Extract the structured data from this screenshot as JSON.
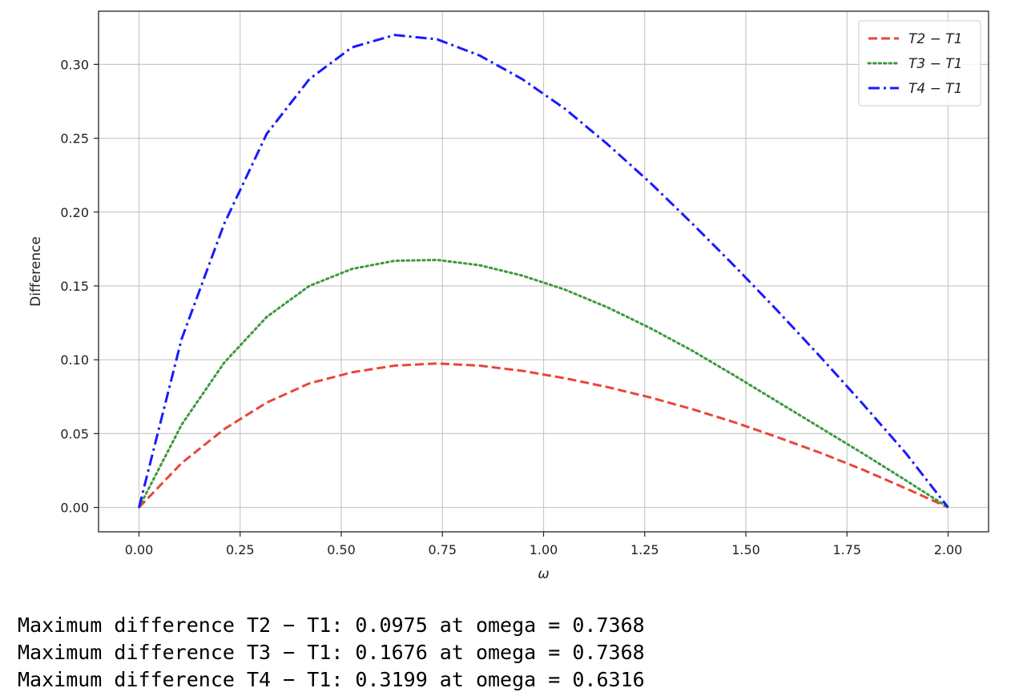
{
  "chart_data": {
    "type": "line",
    "title": "",
    "xlabel": "ω",
    "ylabel": "Difference",
    "xlim": [
      -0.1,
      2.1
    ],
    "ylim": [
      -0.0165,
      0.336
    ],
    "xticks": [
      0.0,
      0.25,
      0.5,
      0.75,
      1.0,
      1.25,
      1.5,
      1.75,
      2.0
    ],
    "xtick_labels": [
      "0.00",
      "0.25",
      "0.50",
      "0.75",
      "1.00",
      "1.25",
      "1.50",
      "1.75",
      "2.00"
    ],
    "yticks": [
      0.0,
      0.05,
      0.1,
      0.15,
      0.2,
      0.25,
      0.3
    ],
    "ytick_labels": [
      "0.00",
      "0.05",
      "0.10",
      "0.15",
      "0.20",
      "0.25",
      "0.30"
    ],
    "grid": true,
    "legend_position": "top-right",
    "x": [
      0.0,
      0.1053,
      0.2105,
      0.3158,
      0.4211,
      0.5263,
      0.6316,
      0.7368,
      0.8421,
      0.9474,
      1.0526,
      1.1579,
      1.2632,
      1.3684,
      1.4737,
      1.5789,
      1.6842,
      1.7895,
      1.8947,
      2.0
    ],
    "series": [
      {
        "name": "T2 − T1",
        "color": "#e8463c",
        "dash": "dashed",
        "values": [
          0.0,
          0.03,
          0.053,
          0.071,
          0.084,
          0.0915,
          0.096,
          0.0975,
          0.096,
          0.0925,
          0.0875,
          0.0815,
          0.0745,
          0.0665,
          0.0575,
          0.0475,
          0.037,
          0.0255,
          0.013,
          0.0
        ]
      },
      {
        "name": "T3 − T1",
        "color": "#3c9a3c",
        "dash": "dotted",
        "values": [
          0.0,
          0.056,
          0.098,
          0.129,
          0.15,
          0.1615,
          0.167,
          0.1676,
          0.164,
          0.157,
          0.1475,
          0.1355,
          0.1215,
          0.106,
          0.089,
          0.0715,
          0.054,
          0.0365,
          0.0185,
          0.0
        ]
      },
      {
        "name": "T4 − T1",
        "color": "#1a1aff",
        "dash": "dashdot",
        "values": [
          0.0,
          0.114,
          0.192,
          0.253,
          0.29,
          0.3115,
          0.3199,
          0.317,
          0.306,
          0.29,
          0.27,
          0.246,
          0.22,
          0.192,
          0.163,
          0.133,
          0.102,
          0.07,
          0.037,
          0.0
        ]
      }
    ]
  },
  "output": {
    "lines": [
      "Maximum difference T2 − T1: 0.0975 at omega = 0.7368",
      "Maximum difference T3 − T1: 0.1676 at omega = 0.7368",
      "Maximum difference T4 − T1: 0.3199 at omega = 0.6316"
    ]
  }
}
